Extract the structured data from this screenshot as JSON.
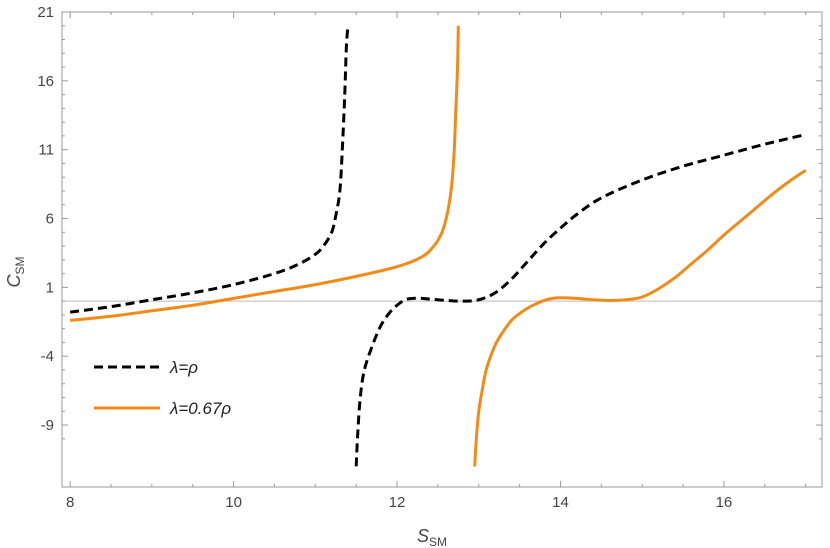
{
  "chart_data": {
    "type": "line",
    "xlabel": {
      "main": "S",
      "sub": "SM"
    },
    "ylabel": {
      "main": "C",
      "sub": "SM"
    },
    "xlim": [
      7.9,
      17.2
    ],
    "ylim": [
      -13.5,
      21
    ],
    "xticks": [
      8,
      10,
      12,
      14,
      16
    ],
    "yticks": [
      -9,
      -4,
      1,
      6,
      11,
      16,
      21
    ],
    "reference_line_y": 0,
    "grid": false,
    "legend_position": "bottom-left",
    "colors": {
      "series_1": "#000000",
      "series_2": "#f28a17",
      "frame": "#999999",
      "reference": "#bbbbbb"
    },
    "series": [
      {
        "name": "λ=ρ",
        "style": "dashed",
        "segments": [
          [
            [
              8.0,
              -0.8
            ],
            [
              8.5,
              -0.4
            ],
            [
              9.0,
              0.1
            ],
            [
              9.5,
              0.6
            ],
            [
              10.0,
              1.2
            ],
            [
              10.5,
              2.0
            ],
            [
              10.8,
              2.7
            ],
            [
              11.0,
              3.4
            ],
            [
              11.1,
              4.0
            ],
            [
              11.2,
              5.0
            ],
            [
              11.25,
              6.2
            ],
            [
              11.3,
              8.0
            ],
            [
              11.33,
              11.0
            ],
            [
              11.36,
              15.0
            ],
            [
              11.38,
              18.5
            ],
            [
              11.4,
              20.0
            ]
          ],
          [
            [
              11.5,
              -12.0
            ],
            [
              11.52,
              -9.5
            ],
            [
              11.55,
              -7.0
            ],
            [
              11.6,
              -5.0
            ],
            [
              11.7,
              -3.2
            ],
            [
              11.8,
              -1.8
            ],
            [
              11.9,
              -0.9
            ],
            [
              12.0,
              -0.3
            ],
            [
              12.1,
              0.1
            ],
            [
              12.2,
              0.2
            ],
            [
              12.3,
              0.2
            ],
            [
              12.4,
              0.15
            ],
            [
              12.6,
              0.05
            ],
            [
              12.8,
              0.0
            ],
            [
              13.0,
              0.1
            ],
            [
              13.2,
              0.6
            ],
            [
              13.4,
              1.6
            ],
            [
              13.6,
              2.9
            ],
            [
              13.8,
              4.2
            ],
            [
              14.0,
              5.3
            ],
            [
              14.2,
              6.3
            ],
            [
              14.5,
              7.5
            ],
            [
              15.0,
              8.8
            ],
            [
              15.5,
              9.8
            ],
            [
              16.0,
              10.6
            ],
            [
              16.5,
              11.4
            ],
            [
              17.0,
              12.1
            ]
          ]
        ]
      },
      {
        "name": "λ=0.67ρ",
        "style": "solid",
        "segments": [
          [
            [
              8.0,
              -1.4
            ],
            [
              8.5,
              -1.1
            ],
            [
              9.0,
              -0.7
            ],
            [
              9.5,
              -0.3
            ],
            [
              10.0,
              0.2
            ],
            [
              10.5,
              0.7
            ],
            [
              11.0,
              1.2
            ],
            [
              11.5,
              1.8
            ],
            [
              12.0,
              2.5
            ],
            [
              12.3,
              3.2
            ],
            [
              12.45,
              4.0
            ],
            [
              12.55,
              5.0
            ],
            [
              12.62,
              6.5
            ],
            [
              12.67,
              8.5
            ],
            [
              12.7,
              11.0
            ],
            [
              12.72,
              14.0
            ],
            [
              12.74,
              17.0
            ],
            [
              12.75,
              20.0
            ]
          ],
          [
            [
              12.95,
              -12.0
            ],
            [
              12.97,
              -10.0
            ],
            [
              13.0,
              -8.0
            ],
            [
              13.05,
              -6.2
            ],
            [
              13.1,
              -4.8
            ],
            [
              13.2,
              -3.2
            ],
            [
              13.3,
              -2.2
            ],
            [
              13.4,
              -1.4
            ],
            [
              13.5,
              -0.9
            ],
            [
              13.6,
              -0.5
            ],
            [
              13.7,
              -0.2
            ],
            [
              13.8,
              0.05
            ],
            [
              13.9,
              0.2
            ],
            [
              14.0,
              0.25
            ],
            [
              14.2,
              0.2
            ],
            [
              14.4,
              0.1
            ],
            [
              14.6,
              0.05
            ],
            [
              14.8,
              0.1
            ],
            [
              15.0,
              0.3
            ],
            [
              15.2,
              0.9
            ],
            [
              15.4,
              1.7
            ],
            [
              15.6,
              2.7
            ],
            [
              15.8,
              3.7
            ],
            [
              16.0,
              4.8
            ],
            [
              16.2,
              5.8
            ],
            [
              16.4,
              6.8
            ],
            [
              16.6,
              7.8
            ],
            [
              16.8,
              8.7
            ],
            [
              17.0,
              9.5
            ]
          ]
        ]
      }
    ]
  }
}
